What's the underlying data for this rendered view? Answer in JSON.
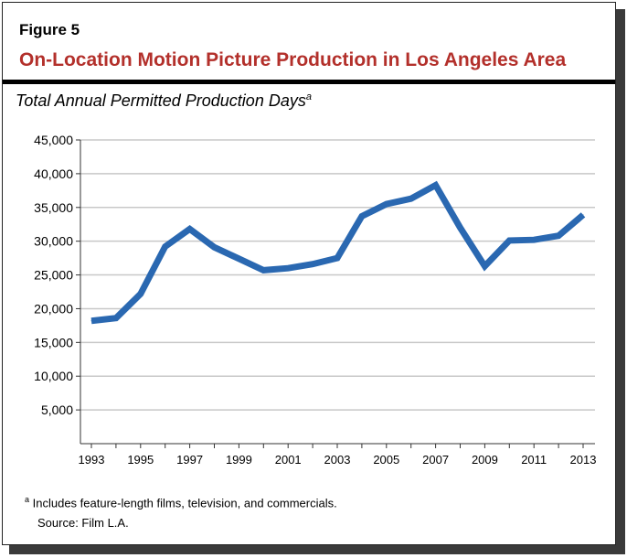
{
  "figure_label": "Figure 5",
  "title": "On-Location Motion Picture Production in Los Angeles Area",
  "footnote_marker": "a",
  "footnote": "Includes feature-length films, television, and commercials.",
  "source": "Source: Film L.A.",
  "colors": {
    "title": "#b3302b",
    "line": "#2a68b1",
    "grid": "#c8c8c8"
  },
  "chart_data": {
    "type": "line",
    "title": "Total Annual Permitted Production Days",
    "title_superscript": "a",
    "xlabel": "",
    "ylabel": "",
    "x": [
      1993,
      1994,
      1995,
      1996,
      1997,
      1998,
      1999,
      2000,
      2001,
      2002,
      2003,
      2004,
      2005,
      2006,
      2007,
      2008,
      2009,
      2010,
      2011,
      2012,
      2013
    ],
    "values": [
      18200,
      18600,
      22200,
      29200,
      31800,
      29100,
      27400,
      25700,
      26000,
      26600,
      27500,
      33700,
      35500,
      36300,
      38300,
      32000,
      26300,
      30100,
      30200,
      30800,
      33900
    ],
    "ylim": [
      0,
      45000
    ],
    "y_ticks": [
      "5,000",
      "10,000",
      "15,000",
      "20,000",
      "25,000",
      "30,000",
      "35,000",
      "40,000",
      "45,000"
    ],
    "x_tick_labels": [
      "1993",
      "1995",
      "1997",
      "1999",
      "2001",
      "2003",
      "2005",
      "2007",
      "2009",
      "2011",
      "2013"
    ],
    "grid": true,
    "legend": "none"
  }
}
